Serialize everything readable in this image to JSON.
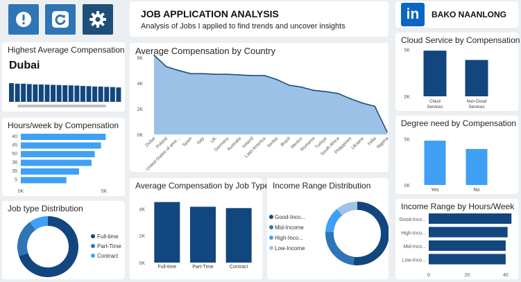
{
  "header": {
    "title": "JOB APPLICATION ANALYSIS",
    "subtitle": "Analysis of Jobs I applied to find trends and uncover insights",
    "brand_logo": "in",
    "brand_name": "BAKO NAANLONG"
  },
  "icons": [
    "alert-icon",
    "refresh-icon",
    "gear-icon"
  ],
  "colors": {
    "dark_blue": "#12467e",
    "mid_blue": "#2e75b6",
    "light_blue": "#3fa0f5",
    "pale_blue": "#9dc3e6",
    "area_fill": "#9bc2e6",
    "brand": "#0a66c2"
  },
  "highest_comp": {
    "title": "Highest Average Compensation",
    "value": "Dubai",
    "bar_levels": [
      1.0,
      0.97,
      0.97,
      0.95,
      0.93,
      0.93,
      0.92,
      0.91,
      0.9,
      0.89,
      0.88,
      0.87,
      0.85,
      0.84,
      0.82,
      0.82,
      0.8,
      0.79,
      0.77
    ]
  },
  "hours_comp": {
    "title": "Hours/week by Compensation",
    "categories": [
      "40",
      "45",
      "50",
      "38",
      "35",
      "5"
    ],
    "values": [
      5400,
      5100,
      4700,
      4500,
      3700,
      2900
    ],
    "x_ticks": [
      "0K",
      "5K"
    ],
    "xlim": [
      0,
      6000
    ]
  },
  "job_type": {
    "title": "Job type Distribution",
    "legend": [
      "Full-time",
      "Part-Time",
      "Contract"
    ],
    "values": [
      70,
      20,
      10
    ]
  },
  "avg_country": {
    "title": "Average Compensation by Country",
    "categories": [
      "Dubai",
      "Poland",
      "United States of ame...",
      "Spain",
      "Italy",
      "UK",
      "Germany",
      "Australia",
      "Ireland",
      "Latin America",
      "Serbia",
      "Brazil",
      "Mexico",
      "Romania",
      "Turkiye",
      "South Africa",
      "Philippines",
      "Ukraine",
      "India",
      "Nigeria"
    ],
    "values": [
      6200,
      5300,
      5000,
      4750,
      4750,
      4700,
      4700,
      4650,
      4600,
      4600,
      4300,
      3850,
      3700,
      3450,
      3350,
      3200,
      2800,
      2450,
      2200,
      200
    ],
    "y_ticks": [
      "6K",
      "4K",
      "2K",
      "0K"
    ],
    "ylim": [
      0,
      6500
    ]
  },
  "job_type_comp": {
    "title": "Average Compensation by Job Type",
    "categories": [
      "Full-time",
      "Part-Time",
      "Contract"
    ],
    "values": [
      4500,
      4150,
      4050
    ],
    "y_ticks": [
      "4K",
      "2K",
      "0K"
    ],
    "ylim": [
      0,
      5200
    ]
  },
  "income_range": {
    "title": "Income Range Distribution",
    "legend": [
      "Good-Inco...",
      "Mid-Income",
      "High-Inco...",
      "Low-Income"
    ],
    "values": [
      52,
      24,
      13,
      11
    ]
  },
  "cloud_comp": {
    "title": "Cloud Service by Compensation",
    "categories": [
      "Cloud Services",
      "Non-Cloud Services"
    ],
    "values": [
      4900,
      3900
    ],
    "y_ticks": [
      "5K",
      "0K"
    ],
    "ylim": [
      0,
      5500
    ]
  },
  "degree_comp": {
    "title": "Degree need by Compensation",
    "categories": [
      "Yes",
      "No"
    ],
    "values": [
      4800,
      3900
    ],
    "y_ticks": [
      "5K",
      "0K"
    ],
    "ylim": [
      0,
      6000
    ]
  },
  "income_hours": {
    "title": "Income Range by Hours/Week",
    "categories": [
      "Good-Inco...",
      "High-Inco...",
      "Mid-Inco...",
      "Low-Inco..."
    ],
    "values": [
      43,
      41,
      40,
      40
    ],
    "x_ticks": [
      "0",
      "20",
      "40"
    ],
    "xlim": [
      0,
      44
    ]
  }
}
